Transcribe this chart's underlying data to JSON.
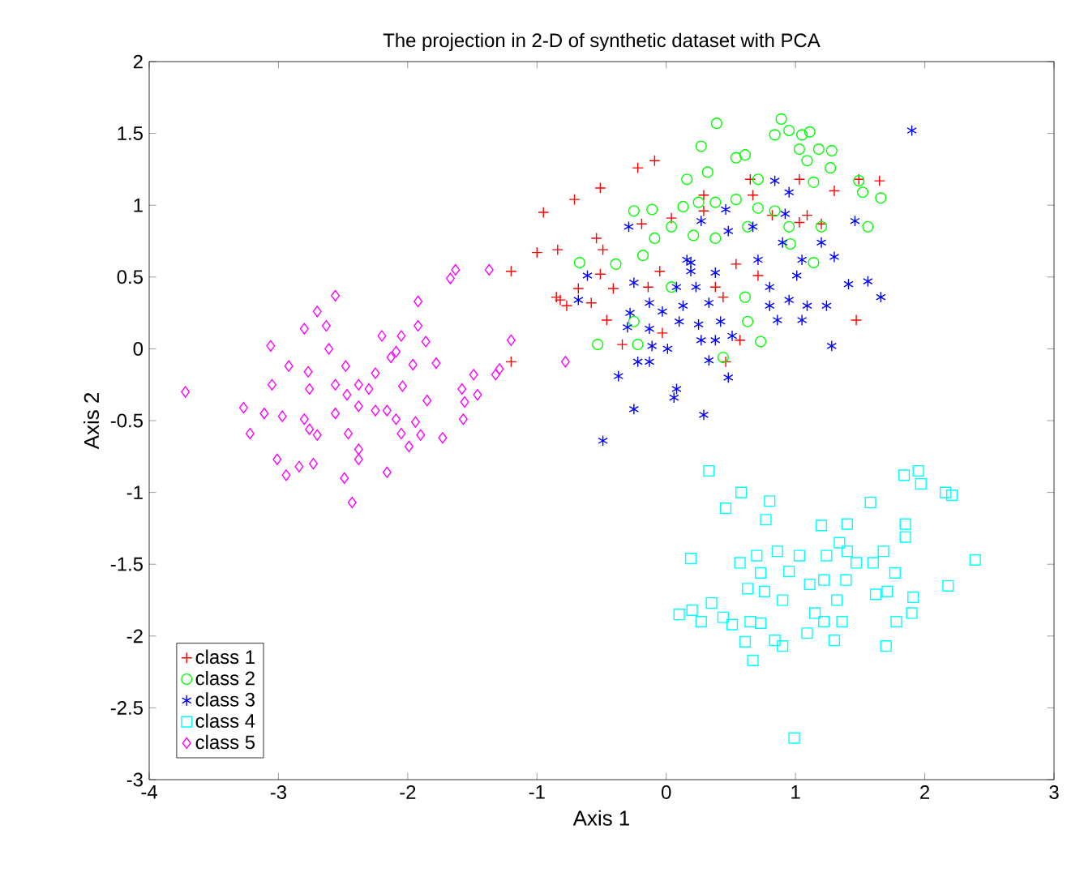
{
  "chart_data": {
    "type": "scatter",
    "title": "The projection in 2-D of synthetic dataset with PCA",
    "xlabel": "Axis 1",
    "ylabel": "Axis 2",
    "xlim": [
      -4,
      3
    ],
    "ylim": [
      -3,
      2
    ],
    "xticks": [
      -4,
      -3,
      -2,
      -1,
      0,
      1,
      2,
      3
    ],
    "yticks": [
      -3,
      -2.5,
      -2,
      -1.5,
      -1,
      -0.5,
      0,
      0.5,
      1,
      1.5,
      2
    ],
    "legend": "bottom left",
    "series": [
      {
        "name": "class 1",
        "color": "#ff0000",
        "marker": "cross",
        "x": [
          -0.22,
          -0.09,
          -0.51,
          -0.71,
          -0.95,
          -0.54,
          -0.49,
          -0.84,
          -1.0,
          -1.2,
          -0.19,
          0.04,
          0.29,
          0.65,
          0.67,
          1.03,
          1.3,
          1.49,
          1.65,
          1.09,
          1.2,
          -0.51,
          -0.41,
          -0.68,
          -0.82,
          -0.77,
          -0.58,
          -0.46,
          -0.34,
          -1.2,
          -0.05,
          -0.14,
          -0.03,
          0.38,
          0.44,
          0.71,
          0.57,
          0.46,
          1.47,
          0.29,
          0.54,
          1.03,
          0.82,
          -0.85
        ],
        "values": [
          1.26,
          1.31,
          1.12,
          1.04,
          0.95,
          0.77,
          0.69,
          0.69,
          0.67,
          0.54,
          0.87,
          0.91,
          1.07,
          1.18,
          1.07,
          1.18,
          1.1,
          1.18,
          1.17,
          0.93,
          0.87,
          0.52,
          0.42,
          0.42,
          0.34,
          0.3,
          0.32,
          0.2,
          0.03,
          -0.09,
          0.54,
          0.43,
          0.11,
          0.43,
          0.36,
          0.51,
          0.06,
          -0.09,
          0.2,
          0.96,
          0.59,
          0.88,
          0.93,
          0.36
        ]
      },
      {
        "name": "class 2",
        "color": "#00ff00",
        "marker": "circle",
        "x": [
          0.39,
          0.89,
          0.84,
          0.95,
          1.05,
          1.11,
          1.03,
          1.18,
          1.28,
          1.09,
          1.27,
          0.27,
          0.54,
          0.61,
          0.32,
          0.16,
          1.14,
          1.49,
          1.52,
          1.66,
          1.56,
          0.71,
          -0.25,
          -0.11,
          0.13,
          0.25,
          0.38,
          0.54,
          0.71,
          0.84,
          -0.18,
          -0.09,
          0.04,
          0.21,
          0.38,
          0.63,
          0.95,
          1.2,
          -0.67,
          -0.39,
          1.14,
          -0.25,
          -0.53,
          -0.22,
          0.73,
          0.63,
          0.61,
          0.44,
          0.04,
          0.96
        ],
        "values": [
          1.57,
          1.6,
          1.49,
          1.52,
          1.49,
          1.51,
          1.39,
          1.39,
          1.38,
          1.31,
          1.26,
          1.41,
          1.33,
          1.35,
          1.23,
          1.18,
          1.16,
          1.17,
          1.09,
          1.05,
          0.85,
          1.18,
          0.96,
          0.97,
          0.99,
          1.02,
          1.02,
          1.04,
          0.98,
          0.96,
          0.65,
          0.77,
          0.85,
          0.79,
          0.77,
          0.85,
          0.85,
          0.85,
          0.6,
          0.59,
          0.6,
          0.19,
          0.03,
          0.03,
          0.05,
          0.19,
          0.36,
          -0.06,
          0.43,
          0.73
        ]
      },
      {
        "name": "class 3",
        "color": "#0000ff",
        "x": [
          1.9,
          0.84,
          0.95,
          0.46,
          0.92,
          1.46,
          -0.29,
          0.27,
          0.48,
          0.67,
          1.2,
          0.9,
          1.3,
          0.71,
          1.05,
          1.01,
          -0.61,
          -0.25,
          0.19,
          0.38,
          0.23,
          0.08,
          0.8,
          1.41,
          1.56,
          1.66,
          -0.68,
          -0.13,
          -0.03,
          0.13,
          0.33,
          0.8,
          0.95,
          1.09,
          1.24,
          0.86,
          1.05,
          -0.28,
          -0.3,
          -0.13,
          0.1,
          0.25,
          0.42,
          0.27,
          0.38,
          0.51,
          -0.11,
          0.01,
          0.33,
          -0.22,
          -0.13,
          1.28,
          -0.37,
          0.48,
          0.08,
          0.06,
          -0.25,
          0.29,
          -0.49,
          0.16,
          0.19
        ],
        "values": [
          1.52,
          1.17,
          1.09,
          0.97,
          0.94,
          0.89,
          0.85,
          0.89,
          0.82,
          0.85,
          0.74,
          0.74,
          0.64,
          0.62,
          0.62,
          0.51,
          0.51,
          0.46,
          0.6,
          0.53,
          0.43,
          0.43,
          0.43,
          0.45,
          0.47,
          0.36,
          0.34,
          0.32,
          0.26,
          0.3,
          0.32,
          0.3,
          0.34,
          0.3,
          0.3,
          0.2,
          0.2,
          0.25,
          0.15,
          0.14,
          0.19,
          0.17,
          0.19,
          0.06,
          0.06,
          0.09,
          0.02,
          0.0,
          -0.08,
          -0.09,
          -0.09,
          0.02,
          -0.19,
          -0.2,
          -0.28,
          -0.34,
          -0.42,
          -0.46,
          -0.64,
          0.62,
          0.54
        ]
      },
      {
        "name": "class 4",
        "color": "#00ffff",
        "marker": "square",
        "x": [
          0.33,
          0.58,
          0.46,
          0.8,
          0.77,
          0.19,
          0.1,
          0.2,
          0.27,
          0.35,
          0.44,
          0.51,
          0.57,
          0.63,
          0.61,
          0.67,
          0.65,
          0.7,
          0.73,
          0.76,
          0.73,
          0.86,
          0.95,
          0.9,
          0.84,
          0.9,
          1.03,
          1.11,
          1.2,
          1.22,
          1.15,
          1.09,
          1.22,
          1.3,
          1.32,
          1.36,
          1.24,
          1.34,
          1.4,
          1.4,
          1.39,
          1.47,
          1.58,
          1.6,
          1.62,
          1.68,
          1.71,
          1.77,
          1.7,
          1.78,
          1.9,
          1.91,
          1.85,
          1.85,
          1.84,
          1.95,
          1.97,
          2.16,
          2.21,
          2.18,
          2.39,
          0.99
        ],
        "values": [
          -0.85,
          -1.0,
          -1.11,
          -1.06,
          -1.19,
          -1.46,
          -1.85,
          -1.82,
          -1.9,
          -1.77,
          -1.87,
          -1.92,
          -1.49,
          -1.67,
          -2.04,
          -2.17,
          -1.9,
          -1.44,
          -1.56,
          -1.69,
          -1.91,
          -1.41,
          -1.55,
          -1.75,
          -2.03,
          -2.07,
          -1.44,
          -1.64,
          -1.23,
          -1.61,
          -1.84,
          -1.98,
          -1.9,
          -2.03,
          -1.75,
          -1.9,
          -1.44,
          -1.35,
          -1.22,
          -1.41,
          -1.61,
          -1.49,
          -1.07,
          -1.49,
          -1.71,
          -1.41,
          -1.69,
          -1.56,
          -2.07,
          -1.9,
          -1.84,
          -1.73,
          -1.22,
          -1.31,
          -0.88,
          -0.85,
          -0.94,
          -1.0,
          -1.02,
          -1.65,
          -1.47,
          -2.71
        ]
      },
      {
        "name": "class 5",
        "color": "#ff00ff",
        "marker": "diamond",
        "x": [
          -3.72,
          -3.27,
          -3.22,
          -3.06,
          -3.05,
          -3.11,
          -3.01,
          -2.94,
          -2.84,
          -2.73,
          -2.92,
          -2.97,
          -2.8,
          -2.7,
          -2.63,
          -2.56,
          -2.61,
          -2.77,
          -2.76,
          -2.8,
          -2.76,
          -2.7,
          -2.56,
          -2.56,
          -2.48,
          -2.38,
          -2.47,
          -2.38,
          -2.46,
          -2.38,
          -2.38,
          -2.49,
          -2.43,
          -2.16,
          -2.25,
          -2.3,
          -2.25,
          -2.2,
          -2.13,
          -2.05,
          -2.09,
          -1.92,
          -1.92,
          -1.96,
          -2.04,
          -2.16,
          -2.09,
          -2.05,
          -1.94,
          -1.99,
          -1.9,
          -1.85,
          -1.78,
          -1.86,
          -1.73,
          -1.67,
          -1.63,
          -1.37,
          -1.49,
          -1.58,
          -1.46,
          -1.56,
          -1.57,
          -1.32,
          -1.2,
          -1.29,
          -0.78
        ],
        "values": [
          -0.3,
          -0.41,
          -0.59,
          0.02,
          -0.25,
          -0.45,
          -0.77,
          -0.88,
          -0.82,
          -0.8,
          -0.12,
          -0.47,
          0.14,
          0.26,
          0.16,
          0.37,
          0.0,
          -0.16,
          -0.28,
          -0.49,
          -0.56,
          -0.6,
          -0.45,
          -0.25,
          -0.12,
          -0.25,
          -0.32,
          -0.4,
          -0.59,
          -0.7,
          -0.77,
          -0.9,
          -1.07,
          -0.86,
          -0.43,
          -0.28,
          -0.17,
          0.09,
          -0.06,
          0.09,
          -0.02,
          0.33,
          0.16,
          -0.11,
          -0.26,
          -0.43,
          -0.49,
          -0.59,
          -0.51,
          -0.68,
          -0.6,
          -0.36,
          -0.1,
          0.05,
          -0.62,
          0.49,
          0.55,
          0.55,
          -0.18,
          -0.28,
          -0.32,
          -0.37,
          -0.49,
          -0.18,
          0.06,
          -0.14,
          -0.09
        ]
      }
    ]
  }
}
